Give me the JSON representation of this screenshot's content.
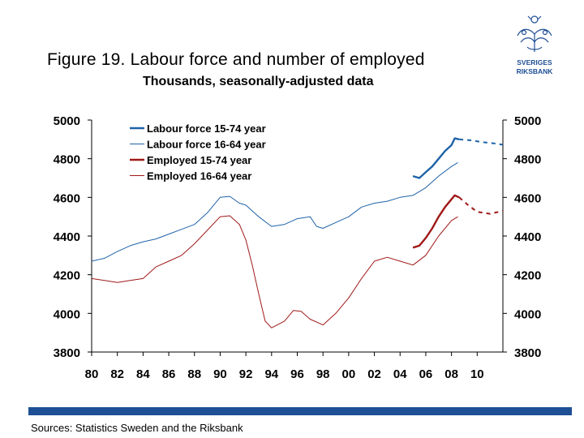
{
  "title": "Figure 19. Labour force and number of employed",
  "subtitle": "Thousands, seasonally-adjusted data",
  "source": "Sources: Statistics Sweden and the Riksbank",
  "logo": {
    "line1": "SVERIGES",
    "line2": "RIKSBANK",
    "color": "#1f4f94"
  },
  "colors": {
    "blue": "#1f63a8",
    "red": "#a01818",
    "bar": "#1f4f94"
  },
  "chart_data": {
    "type": "line",
    "ylim": [
      3800,
      5000
    ],
    "xlim": [
      1980,
      2012
    ],
    "yticks": [
      "5000",
      "4800",
      "4600",
      "4400",
      "4200",
      "4000",
      "3800"
    ],
    "xticks": [
      "80",
      "82",
      "84",
      "86",
      "88",
      "90",
      "92",
      "94",
      "96",
      "98",
      "00",
      "02",
      "04",
      "06",
      "08",
      "10"
    ],
    "grid": false,
    "legend_position": "top-left",
    "series": [
      {
        "name": "Labour force 15-74 year",
        "color": "#1f63a8",
        "width": 2.4,
        "style": "solid",
        "points": [
          [
            2005.0,
            4710
          ],
          [
            2005.5,
            4700
          ],
          [
            2006.0,
            4730
          ],
          [
            2006.5,
            4760
          ],
          [
            2007.0,
            4800
          ],
          [
            2007.5,
            4840
          ],
          [
            2008.0,
            4870
          ],
          [
            2008.25,
            4905
          ],
          [
            2008.6,
            4900
          ]
        ]
      },
      {
        "name": "",
        "color": "#1f63a8",
        "width": 2,
        "style": "dashed",
        "points": [
          [
            2008.6,
            4900
          ],
          [
            2009.5,
            4895
          ],
          [
            2010.5,
            4885
          ],
          [
            2011.5,
            4878
          ],
          [
            2012.0,
            4872
          ]
        ]
      },
      {
        "name": "Labour force 16-64 year",
        "color": "#1f63a8",
        "width": 1,
        "style": "solid",
        "points": [
          [
            1980,
            4270
          ],
          [
            1981,
            4285
          ],
          [
            1982,
            4320
          ],
          [
            1983,
            4350
          ],
          [
            1984,
            4370
          ],
          [
            1985,
            4385
          ],
          [
            1986,
            4410
          ],
          [
            1987,
            4435
          ],
          [
            1988,
            4460
          ],
          [
            1989,
            4520
          ],
          [
            1990,
            4600
          ],
          [
            1990.75,
            4605
          ],
          [
            1991.5,
            4570
          ],
          [
            1992,
            4560
          ],
          [
            1993,
            4500
          ],
          [
            1994,
            4450
          ],
          [
            1995,
            4460
          ],
          [
            1996,
            4490
          ],
          [
            1997,
            4500
          ],
          [
            1997.5,
            4450
          ],
          [
            1998,
            4440
          ],
          [
            1999,
            4470
          ],
          [
            2000,
            4500
          ],
          [
            2001,
            4550
          ],
          [
            2002,
            4570
          ],
          [
            2003,
            4580
          ],
          [
            2004,
            4600
          ],
          [
            2005,
            4610
          ],
          [
            2006,
            4650
          ],
          [
            2007,
            4710
          ],
          [
            2008,
            4760
          ],
          [
            2008.5,
            4780
          ]
        ]
      },
      {
        "name": "Employed 15-74 year",
        "color": "#a01818",
        "width": 2.4,
        "style": "solid",
        "points": [
          [
            2005.0,
            4340
          ],
          [
            2005.5,
            4350
          ],
          [
            2006.0,
            4390
          ],
          [
            2006.5,
            4440
          ],
          [
            2007.0,
            4500
          ],
          [
            2007.5,
            4550
          ],
          [
            2008.0,
            4590
          ],
          [
            2008.25,
            4610
          ],
          [
            2008.6,
            4600
          ]
        ]
      },
      {
        "name": "",
        "color": "#a01818",
        "width": 2,
        "style": "dashed",
        "points": [
          [
            2008.6,
            4600
          ],
          [
            2009.3,
            4560
          ],
          [
            2010.0,
            4525
          ],
          [
            2011.0,
            4515
          ],
          [
            2012.0,
            4530
          ]
        ]
      },
      {
        "name": "Employed 16-64 year",
        "color": "#a01818",
        "width": 1,
        "style": "solid",
        "points": [
          [
            1980,
            4180
          ],
          [
            1981,
            4170
          ],
          [
            1982,
            4160
          ],
          [
            1983,
            4170
          ],
          [
            1984,
            4180
          ],
          [
            1985,
            4240
          ],
          [
            1986,
            4270
          ],
          [
            1987,
            4300
          ],
          [
            1988,
            4360
          ],
          [
            1989,
            4430
          ],
          [
            1990,
            4500
          ],
          [
            1990.75,
            4505
          ],
          [
            1991.5,
            4460
          ],
          [
            1992,
            4380
          ],
          [
            1992.5,
            4250
          ],
          [
            1993,
            4100
          ],
          [
            1993.5,
            3960
          ],
          [
            1994,
            3925
          ],
          [
            1995,
            3960
          ],
          [
            1995.7,
            4015
          ],
          [
            1996.3,
            4010
          ],
          [
            1997,
            3970
          ],
          [
            1998,
            3940
          ],
          [
            1999,
            4000
          ],
          [
            2000,
            4080
          ],
          [
            2001,
            4180
          ],
          [
            2002,
            4270
          ],
          [
            2003,
            4290
          ],
          [
            2004,
            4270
          ],
          [
            2005,
            4250
          ],
          [
            2006,
            4300
          ],
          [
            2007,
            4400
          ],
          [
            2008,
            4480
          ],
          [
            2008.5,
            4500
          ]
        ]
      }
    ]
  }
}
